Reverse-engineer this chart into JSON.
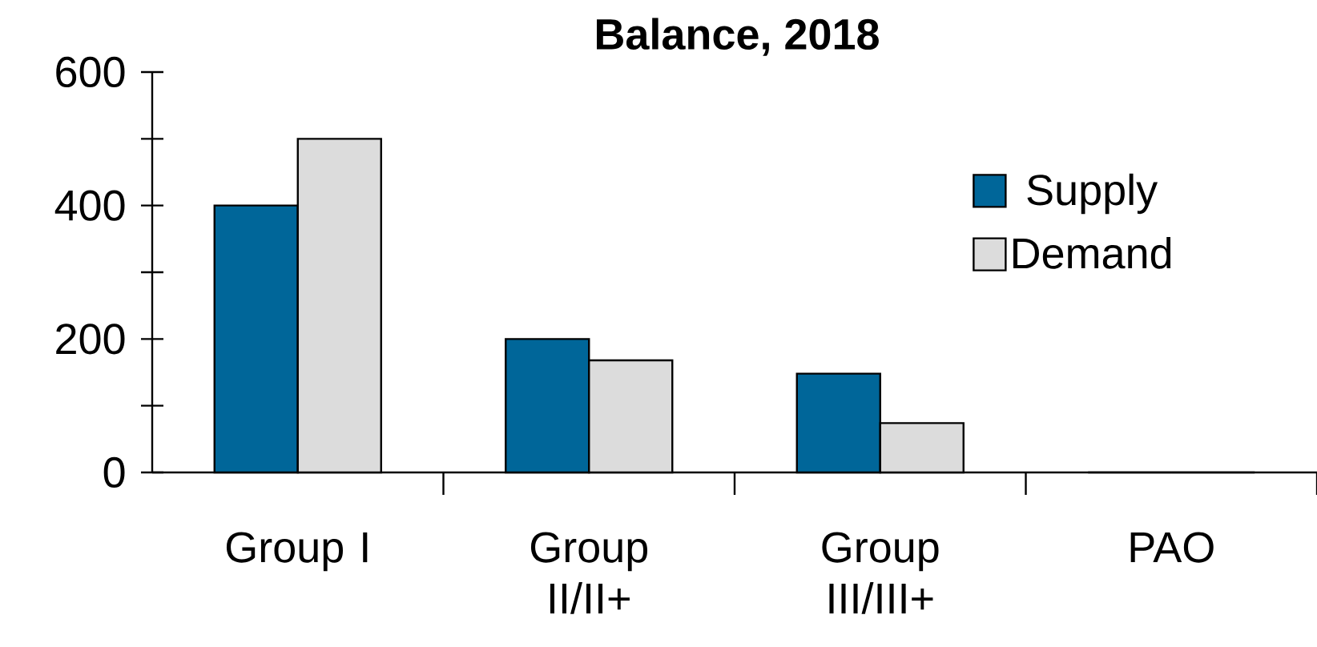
{
  "chart_data": {
    "type": "bar",
    "title": "Balance, 2018",
    "categories": [
      "Group I",
      "Group II/II+",
      "Group III/III+",
      "PAO"
    ],
    "series": [
      {
        "name": "Supply",
        "color": "#006699",
        "values": [
          400,
          200,
          148,
          0
        ]
      },
      {
        "name": "Demand",
        "color": "#dcdcdc",
        "values": [
          500,
          168,
          74,
          0
        ]
      }
    ],
    "ylim": [
      0,
      600
    ],
    "yticks": [
      0,
      {
        "value": 100,
        "label": null
      },
      200,
      {
        "value": 300,
        "label": null
      },
      400,
      {
        "value": 500,
        "label": null
      },
      600
    ],
    "grid": false,
    "legend": "right"
  }
}
